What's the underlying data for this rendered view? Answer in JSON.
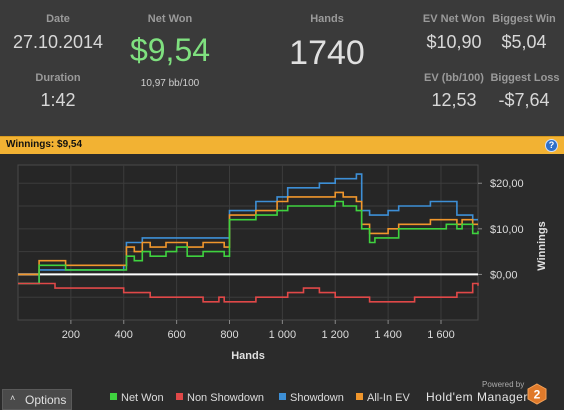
{
  "stats": {
    "date_label": "Date",
    "date_value": "27.10.2014",
    "duration_label": "Duration",
    "duration_value": "1:42",
    "net_won_label": "Net Won",
    "net_won_value": "$9,54",
    "bb_per_100": "10,97 bb/100",
    "hands_label": "Hands",
    "hands_value": "1740",
    "ev_net_won_label": "EV Net Won",
    "ev_net_won_value": "$10,90",
    "biggest_win_label": "Biggest Win",
    "biggest_win_value": "$5,04",
    "ev_bb_label": "EV (bb/100)",
    "ev_bb_value": "12,53",
    "biggest_loss_label": "Biggest Loss",
    "biggest_loss_value": "-$7,64"
  },
  "winnings_bar": {
    "text": "Winnings: $9,54",
    "help_icon": "?"
  },
  "footer": {
    "options_label": "Options",
    "powered_by": "Powered by",
    "brand": "Hold'em Manager",
    "logo_text": "2"
  },
  "colors": {
    "net_won": "#3fd23f",
    "non_showdown": "#e04848",
    "showdown": "#3d8fd6",
    "all_in_ev": "#f0962c",
    "accent_bar": "#f2b233",
    "net_won_big": "#7fe07f"
  },
  "chart_data": {
    "type": "line",
    "xlabel": "Hands",
    "ylabel": "Winnings",
    "x_ticks": [
      200,
      400,
      600,
      800,
      1000,
      1200,
      1400,
      1600
    ],
    "x_tick_labels": [
      "200",
      "400",
      "600",
      "800",
      "1 000",
      "1 200",
      "1 400",
      "1 600"
    ],
    "y_ticks": [
      0,
      10,
      20
    ],
    "y_tick_labels": [
      "$0,00",
      "$10,00",
      "$20,00"
    ],
    "xlim": [
      0,
      1740
    ],
    "ylim": [
      -10,
      24
    ],
    "grid": true,
    "legend_position": "bottom",
    "x": [
      0,
      60,
      80,
      140,
      180,
      300,
      400,
      410,
      440,
      470,
      500,
      560,
      600,
      640,
      700,
      760,
      780,
      800,
      830,
      900,
      980,
      1020,
      1080,
      1140,
      1200,
      1230,
      1280,
      1300,
      1330,
      1350,
      1400,
      1440,
      1500,
      1560,
      1620,
      1660,
      1680,
      1720,
      1740
    ],
    "series": [
      {
        "name": "Net Won",
        "color": "#3fd23f",
        "values": [
          -2,
          -2,
          2,
          2,
          1,
          1,
          1,
          4,
          3,
          5,
          4,
          5,
          6,
          4,
          5,
          5,
          4,
          12,
          12,
          13,
          14,
          15,
          15,
          15,
          16,
          15,
          14,
          10,
          7,
          8,
          8,
          10,
          10,
          10,
          11,
          10,
          11,
          9,
          9.5
        ]
      },
      {
        "name": "Non Showdown",
        "color": "#e04848",
        "values": [
          -2,
          -2,
          -2,
          -3,
          -3,
          -3,
          -4,
          -4,
          -4,
          -4,
          -5,
          -5,
          -5,
          -5,
          -6,
          -5,
          -6,
          -6,
          -6,
          -5,
          -5,
          -4,
          -3,
          -4,
          -5,
          -5,
          -5,
          -5,
          -6,
          -6,
          -6,
          -6,
          -5,
          -5,
          -5,
          -4,
          -4,
          -2,
          -2.5
        ]
      },
      {
        "name": "Showdown",
        "color": "#3d8fd6",
        "values": [
          -2,
          -2,
          1,
          1,
          1,
          1,
          2,
          7,
          7,
          8,
          8,
          8,
          8,
          8,
          8,
          8,
          8,
          14,
          14,
          16,
          17,
          19,
          19,
          20,
          21,
          21,
          22,
          14,
          13,
          13,
          14,
          15,
          15,
          16,
          16,
          13,
          13,
          12,
          12
        ]
      },
      {
        "name": "All-In EV",
        "color": "#f0962c",
        "values": [
          0,
          0,
          3,
          3,
          2,
          2,
          2,
          6,
          5,
          7,
          6,
          7,
          7,
          6,
          7,
          7,
          6,
          13,
          13,
          14,
          16,
          17,
          17,
          17,
          18,
          17,
          16,
          11,
          9,
          9,
          10,
          11,
          11,
          12,
          12,
          11,
          12,
          11,
          11
        ]
      }
    ]
  }
}
